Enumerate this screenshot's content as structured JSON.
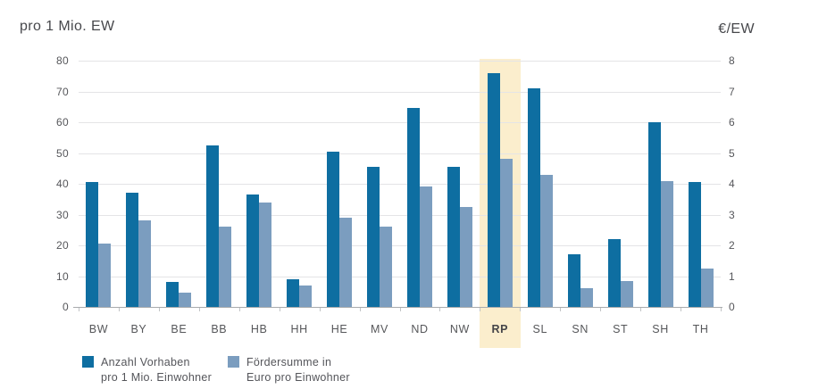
{
  "titles": {
    "left_axis_title": "pro 1 Mio. EW",
    "right_axis_title": "€/EW"
  },
  "colors": {
    "series_dark": "#0e6ea1",
    "series_light": "#7b9dbf",
    "highlight": "#fbeecd",
    "gridline": "#e4e4e6",
    "baseline": "#a8abad",
    "text": "#55565a"
  },
  "chart_data": {
    "type": "bar",
    "title": "",
    "categories": [
      "BW",
      "BY",
      "BE",
      "BB",
      "HB",
      "HH",
      "HE",
      "MV",
      "ND",
      "NW",
      "RP",
      "SL",
      "SN",
      "ST",
      "SH",
      "TH"
    ],
    "series": [
      {
        "name": "Anzahl Vorhaben pro 1 Mio. Einwohner",
        "axis": "left",
        "color": "#0e6ea1",
        "values": [
          40.5,
          37,
          8,
          52.5,
          36.5,
          9,
          50.5,
          45.5,
          64.5,
          45.5,
          76,
          71,
          17,
          22,
          60,
          40.5
        ]
      },
      {
        "name": "Fördersumme in Euro pro Einwohner",
        "axis": "right",
        "color": "#7b9dbf",
        "values": [
          2.05,
          2.8,
          0.45,
          2.6,
          3.4,
          0.7,
          2.9,
          2.6,
          3.9,
          3.25,
          4.8,
          4.3,
          0.6,
          0.85,
          4.1,
          1.25
        ]
      }
    ],
    "left_axis": {
      "label": "pro 1 Mio. EW",
      "min": 0,
      "max": 80,
      "tick_step": 10
    },
    "right_axis": {
      "label": "€/EW",
      "min": 0,
      "max": 8,
      "tick_step": 1
    },
    "highlighted_category": "RP",
    "grid": true,
    "legend_position": "bottom"
  },
  "legend": {
    "items": [
      {
        "label_line1": "Anzahl Vorhaben",
        "label_line2": "pro 1 Mio. Einwohner",
        "color": "#0e6ea1"
      },
      {
        "label_line1": "Fördersumme in",
        "label_line2": "Euro pro Einwohner",
        "color": "#7b9dbf"
      }
    ]
  }
}
